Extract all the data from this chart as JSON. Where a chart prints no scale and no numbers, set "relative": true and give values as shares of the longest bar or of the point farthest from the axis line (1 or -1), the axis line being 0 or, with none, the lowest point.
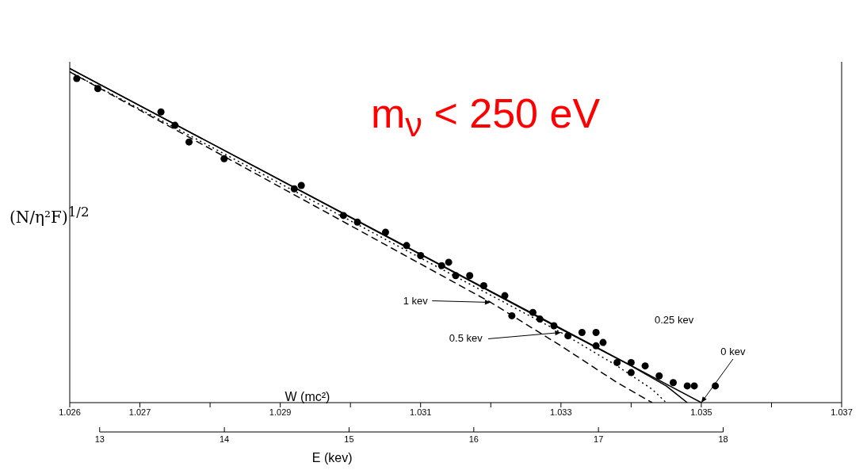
{
  "chart_data": {
    "type": "scatter",
    "relative": true,
    "xlabel": "W (mc²)",
    "x2label": "E (kev)",
    "ylabel": "(N/η²F)$^{1/2}$",
    "xlim": [
      1.026,
      1.037
    ],
    "xticks": [
      1.026,
      1.027,
      {
        "value": 1.028,
        "label": null
      },
      1.029,
      {
        "value": 1.03,
        "label": null
      },
      1.031,
      {
        "value": 1.032,
        "label": null
      },
      1.033,
      {
        "value": 1.034,
        "label": null
      },
      1.035,
      {
        "value": 1.036,
        "label": null
      },
      1.037
    ],
    "x2lim": [
      12.76,
      18.95
    ],
    "x2ticks": [
      13,
      14,
      15,
      16,
      17,
      18
    ],
    "marker": "circle",
    "series": [
      {
        "type": "scatter",
        "color": "#000000",
        "x": [
          1.0261,
          1.0264,
          1.0273,
          1.0275,
          1.0277,
          1.0282,
          1.0292,
          1.0293,
          1.0299,
          1.0301,
          1.0305,
          1.0308,
          1.031,
          1.0313,
          1.0314,
          1.0315,
          1.0317,
          1.0319,
          1.0322,
          1.0323,
          1.0326,
          1.0327,
          1.0329,
          1.0331,
          1.0333,
          1.0335,
          1.0336,
          1.0335,
          1.0338,
          1.034,
          1.0342,
          1.034,
          1.0344,
          1.0346,
          1.0348,
          1.0349,
          1.0352
        ],
        "values": [
          0.97,
          0.94,
          0.87,
          0.83,
          0.78,
          0.73,
          0.64,
          0.65,
          0.56,
          0.54,
          0.51,
          0.47,
          0.44,
          0.41,
          0.42,
          0.38,
          0.38,
          0.35,
          0.32,
          0.26,
          0.27,
          0.25,
          0.23,
          0.2,
          0.21,
          0.21,
          0.18,
          0.17,
          0.12,
          0.12,
          0.11,
          0.09,
          0.08,
          0.06,
          0.05,
          0.05,
          0.05
        ]
      },
      {
        "type": "line",
        "color": "#000000",
        "marker": "none",
        "line_style": "solid",
        "x": [
          1.026,
          1.035
        ],
        "values": [
          1.0,
          0
        ]
      },
      {
        "type": "line",
        "color": "#000000",
        "marker": "none",
        "line_style": "solid",
        "x": [
          1.026,
          1.033,
          1.034,
          1.0345,
          1.0348
        ],
        "values": [
          1.0,
          0.22,
          0.11,
          0.05,
          0
        ]
      },
      {
        "type": "line",
        "color": "#000000",
        "marker": "none",
        "line_style": "dotted",
        "x": [
          1.026,
          1.033,
          1.0338,
          1.0343,
          1.0345
        ],
        "values": [
          0.99,
          0.21,
          0.11,
          0.04,
          0
        ]
      },
      {
        "type": "line",
        "color": "#000000",
        "marker": "none",
        "line_style": "dashed",
        "x": [
          1.026,
          1.032,
          1.033,
          1.0338,
          1.0343
        ],
        "values": [
          0.99,
          0.3,
          0.17,
          0.06,
          0
        ]
      }
    ],
    "annotations": [
      "m$_{ν}$ < 250 eV",
      {
        "text": "1 kev",
        "x": 1.032,
        "y": 0.3
      },
      {
        "text": "0.5 kev",
        "x": 1.033,
        "y": 0.21
      },
      "0.25 kev",
      {
        "text": "0 kev",
        "x": 1.035,
        "y": 0
      }
    ]
  }
}
